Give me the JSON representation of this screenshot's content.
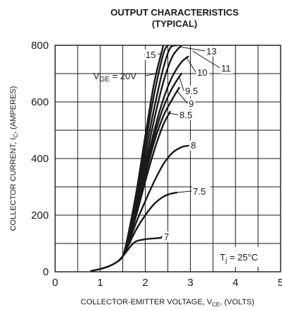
{
  "chart_data": {
    "type": "line",
    "title": "OUTPUT CHARACTERISTICS",
    "subtitle": "(TYPICAL)",
    "xlabel": {
      "main": "COLLECTOR-EMITTER VOLTAGE, V",
      "sub": "CE",
      "tail": ", (VOLTS)"
    },
    "ylabel": {
      "main": "COLLECTOR CURRENT, I",
      "sub": "C",
      "tail": ", (AMPERES)"
    },
    "xlim": [
      0,
      5
    ],
    "ylim": [
      0,
      800
    ],
    "xticks": [
      "0",
      "1",
      "2",
      "3",
      "4",
      "5"
    ],
    "yticks": [
      "0",
      "200",
      "400",
      "600",
      "800"
    ],
    "grid": true,
    "series": [
      {
        "name": "7",
        "x": [
          0.8,
          1.0,
          1.2,
          1.4,
          1.5,
          1.6,
          1.7,
          1.8,
          2.0,
          2.2,
          2.35
        ],
        "y": [
          3,
          10,
          20,
          38,
          55,
          75,
          95,
          108,
          115,
          118,
          120
        ]
      },
      {
        "name": "7.5",
        "x": [
          0.8,
          1.0,
          1.2,
          1.4,
          1.5,
          1.6,
          1.8,
          2.0,
          2.2,
          2.4,
          2.55,
          2.7
        ],
        "y": [
          3,
          10,
          20,
          38,
          55,
          85,
          150,
          200,
          240,
          265,
          275,
          280
        ]
      },
      {
        "name": "8",
        "x": [
          0.8,
          1.0,
          1.2,
          1.4,
          1.5,
          1.6,
          1.8,
          2.0,
          2.2,
          2.4,
          2.6,
          2.8,
          2.95
        ],
        "y": [
          3,
          10,
          20,
          38,
          55,
          90,
          175,
          250,
          320,
          380,
          420,
          440,
          445
        ]
      },
      {
        "name": "8.5",
        "x": [
          1.4,
          1.5,
          1.6,
          1.8,
          2.0,
          2.2,
          2.4,
          2.55
        ],
        "y": [
          38,
          55,
          95,
          200,
          320,
          430,
          520,
          565
        ]
      },
      {
        "name": "9",
        "x": [
          1.4,
          1.5,
          1.6,
          1.8,
          2.0,
          2.2,
          2.4,
          2.6,
          2.75
        ],
        "y": [
          38,
          55,
          95,
          210,
          340,
          460,
          550,
          610,
          650
        ]
      },
      {
        "name": "9.5",
        "x": [
          1.4,
          1.5,
          1.6,
          1.8,
          2.0,
          2.2,
          2.4,
          2.6,
          2.8
        ],
        "y": [
          38,
          55,
          95,
          215,
          355,
          480,
          580,
          650,
          700
        ]
      },
      {
        "name": "10",
        "x": [
          1.4,
          1.5,
          1.6,
          1.8,
          2.0,
          2.2,
          2.4,
          2.6,
          2.8,
          2.95
        ],
        "y": [
          38,
          55,
          100,
          225,
          370,
          500,
          610,
          690,
          740,
          760
        ]
      },
      {
        "name": "11",
        "x": [
          1.4,
          1.5,
          1.6,
          1.8,
          2.0,
          2.2,
          2.4,
          2.6,
          2.8
        ],
        "y": [
          38,
          55,
          100,
          235,
          390,
          540,
          670,
          760,
          800
        ]
      },
      {
        "name": "13",
        "x": [
          1.4,
          1.5,
          1.6,
          1.8,
          2.0,
          2.2,
          2.4,
          2.55,
          2.7
        ],
        "y": [
          38,
          55,
          105,
          250,
          420,
          580,
          720,
          790,
          800
        ]
      },
      {
        "name": "15",
        "x": [
          1.4,
          1.5,
          1.6,
          1.8,
          2.0,
          2.2,
          2.4,
          2.5
        ],
        "y": [
          38,
          55,
          110,
          265,
          450,
          630,
          770,
          800
        ]
      },
      {
        "name": "V_GE = 20V",
        "x": [
          1.4,
          1.5,
          1.6,
          1.8,
          2.0,
          2.2,
          2.4
        ],
        "y": [
          38,
          55,
          115,
          280,
          480,
          670,
          800
        ]
      }
    ],
    "annotations": {
      "vge_main": "V",
      "vge_sub": "GE",
      "vge_tail": " = 20V",
      "temp_main": "T",
      "temp_sub": "j",
      "temp_tail": " = 25°C"
    },
    "colors": {
      "line": "#1a1a1a",
      "grid": "#1a1a1a"
    }
  }
}
